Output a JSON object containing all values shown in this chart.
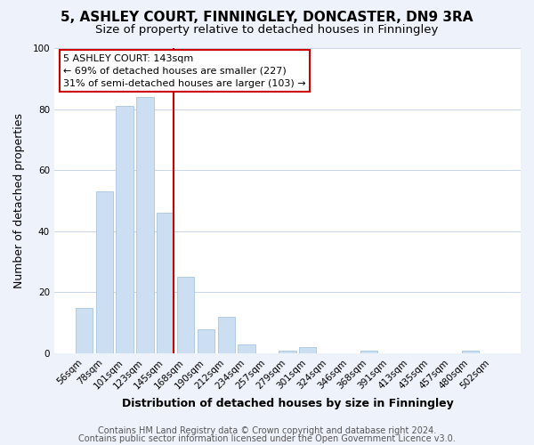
{
  "title": "5, ASHLEY COURT, FINNINGLEY, DONCASTER, DN9 3RA",
  "subtitle": "Size of property relative to detached houses in Finningley",
  "xlabel": "Distribution of detached houses by size in Finningley",
  "ylabel": "Number of detached properties",
  "bar_labels": [
    "56sqm",
    "78sqm",
    "101sqm",
    "123sqm",
    "145sqm",
    "168sqm",
    "190sqm",
    "212sqm",
    "234sqm",
    "257sqm",
    "279sqm",
    "301sqm",
    "324sqm",
    "346sqm",
    "368sqm",
    "391sqm",
    "413sqm",
    "435sqm",
    "457sqm",
    "480sqm",
    "502sqm"
  ],
  "bar_values": [
    15,
    53,
    81,
    84,
    46,
    25,
    8,
    12,
    3,
    0,
    1,
    2,
    0,
    0,
    1,
    0,
    0,
    0,
    0,
    1,
    0
  ],
  "bar_color": "#ccdff2",
  "bar_edge_color": "#a8c5e0",
  "highlight_bar_index": 4,
  "highlight_line_color": "#cc0000",
  "ylim": [
    0,
    100
  ],
  "yticks": [
    0,
    20,
    40,
    60,
    80,
    100
  ],
  "annotation_title": "5 ASHLEY COURT: 143sqm",
  "annotation_line1": "← 69% of detached houses are smaller (227)",
  "annotation_line2": "31% of semi-detached houses are larger (103) →",
  "annotation_box_color": "#ffffff",
  "annotation_box_edge": "#cc0000",
  "footer1": "Contains HM Land Registry data © Crown copyright and database right 2024.",
  "footer2": "Contains public sector information licensed under the Open Government Licence v3.0.",
  "bg_color": "#eef2fa",
  "plot_bg_color": "#ffffff",
  "grid_color": "#c8d4e8",
  "title_fontsize": 11,
  "subtitle_fontsize": 9.5,
  "axis_label_fontsize": 9,
  "tick_fontsize": 7.5,
  "footer_fontsize": 7
}
